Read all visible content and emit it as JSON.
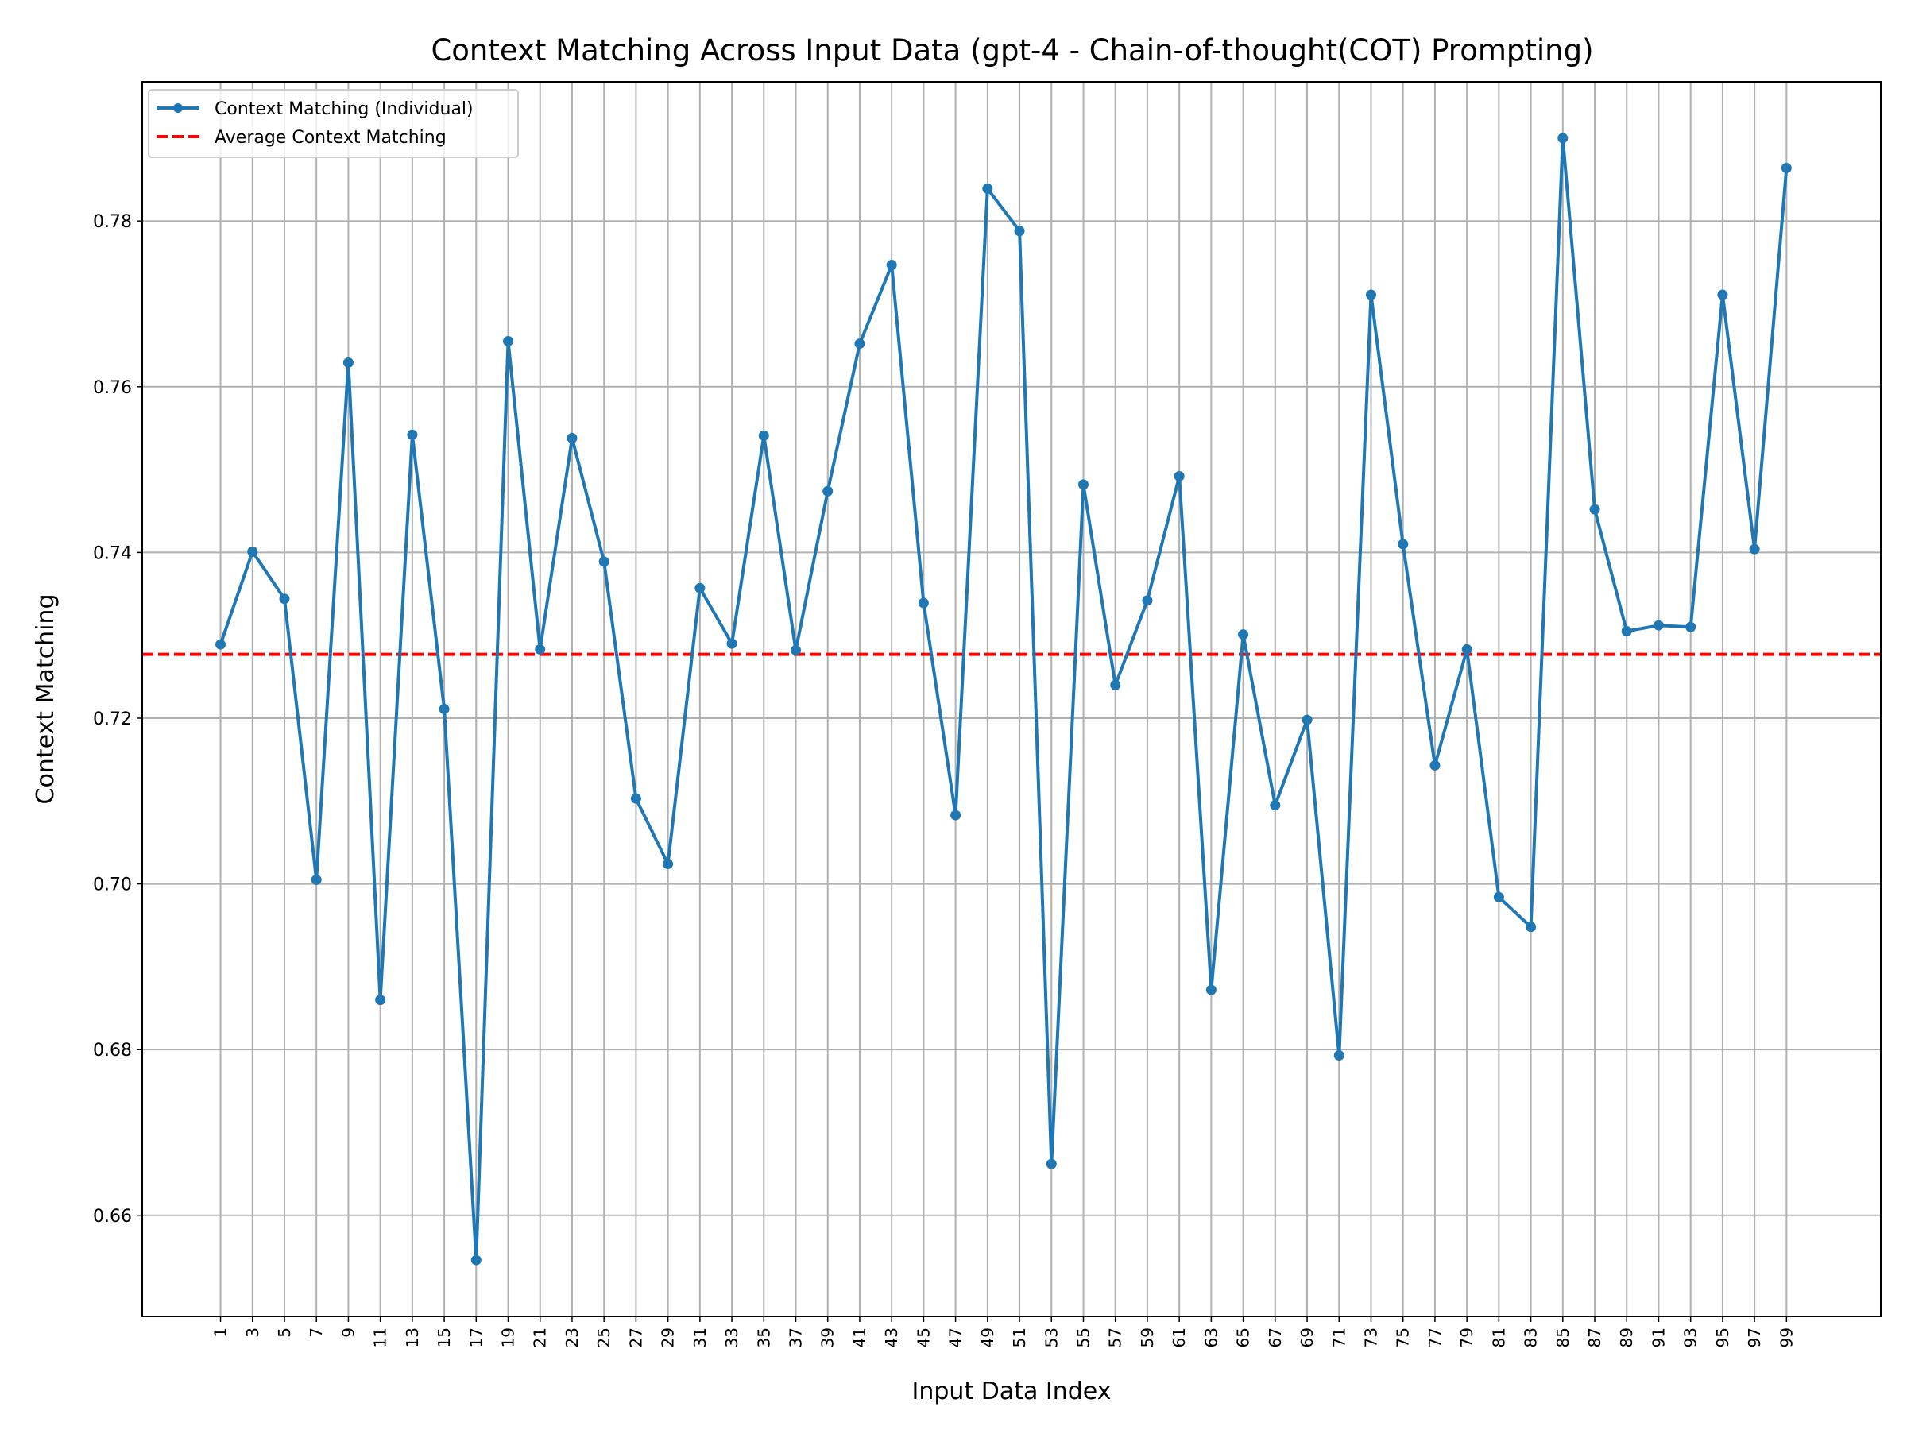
{
  "chart_data": {
    "type": "line",
    "title": "Context Matching Across Input Data (gpt-4 - Chain-of-thought(COT) Prompting)",
    "xlabel": "Input Data Index",
    "ylabel": "Context Matching",
    "x": [
      1,
      3,
      5,
      7,
      9,
      11,
      13,
      15,
      17,
      19,
      21,
      23,
      25,
      27,
      29,
      31,
      33,
      35,
      37,
      39,
      41,
      43,
      45,
      47,
      49,
      51,
      53,
      55,
      57,
      59,
      61,
      63,
      65,
      67,
      69,
      71,
      73,
      75,
      77,
      79,
      81,
      83,
      85,
      87,
      89,
      91,
      93,
      95,
      97,
      99
    ],
    "series": [
      {
        "name": "Context Matching (Individual)",
        "color": "#1f77b4",
        "style": "solid-with-markers",
        "values": [
          0.7289,
          0.7401,
          0.7344,
          0.7005,
          0.7629,
          0.686,
          0.7542,
          0.7211,
          0.6546,
          0.7655,
          0.7283,
          0.7538,
          0.7389,
          0.7103,
          0.7024,
          0.7357,
          0.729,
          0.7541,
          0.7282,
          0.7474,
          0.7652,
          0.7747,
          0.7339,
          0.7083,
          0.7839,
          0.7788,
          0.6662,
          0.7482,
          0.724,
          0.7342,
          0.7492,
          0.6872,
          0.7301,
          0.7095,
          0.7198,
          0.6793,
          0.7711,
          0.741,
          0.7143,
          0.7283,
          0.6984,
          0.6948,
          0.79,
          0.7452,
          0.7305,
          0.7312,
          0.731,
          0.7711,
          0.7404,
          0.7864
        ]
      },
      {
        "name": "Average Context Matching",
        "color": "#ff0000",
        "style": "dashed",
        "value": 0.7277
      }
    ],
    "xticks": [
      "1",
      "3",
      "5",
      "7",
      "9",
      "11",
      "13",
      "15",
      "17",
      "19",
      "21",
      "23",
      "25",
      "27",
      "29",
      "31",
      "33",
      "35",
      "37",
      "39",
      "41",
      "43",
      "45",
      "47",
      "49",
      "51",
      "53",
      "55",
      "57",
      "59",
      "61",
      "63",
      "65",
      "67",
      "69",
      "71",
      "73",
      "75",
      "77",
      "79",
      "81",
      "83",
      "85",
      "87",
      "89",
      "91",
      "93",
      "95",
      "97",
      "99"
    ],
    "yticks": [
      "0.66",
      "0.68",
      "0.70",
      "0.72",
      "0.74",
      "0.76",
      "0.78"
    ],
    "ytick_values": [
      0.66,
      0.68,
      0.7,
      0.72,
      0.74,
      0.76,
      0.78
    ],
    "xlim": [
      -3.9,
      104.9
    ],
    "ylim": [
      0.6478,
      0.7968
    ],
    "grid": true,
    "legend_position": "upper-left"
  }
}
